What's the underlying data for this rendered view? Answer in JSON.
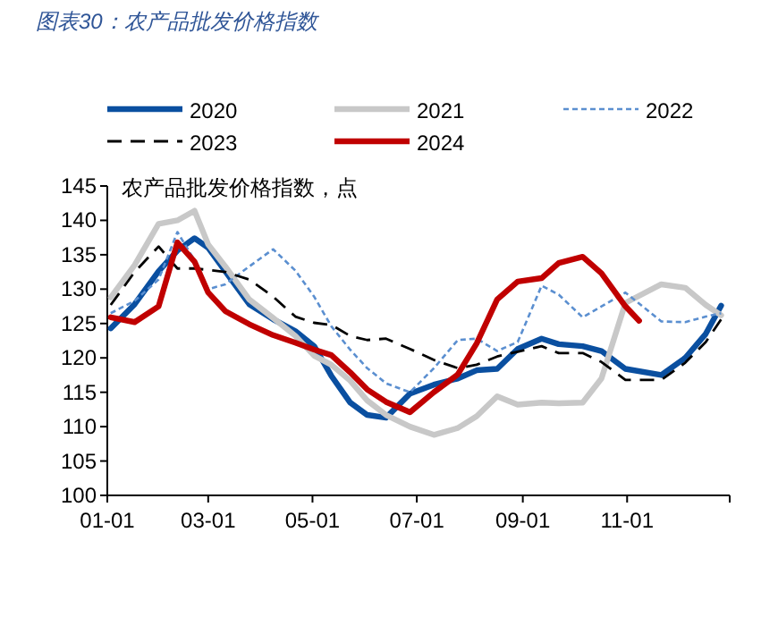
{
  "chart_data": {
    "type": "line",
    "title": "图表30：农产品批发价格指数",
    "ylabel": "农产品批发价格指数，点",
    "x": [
      "--01-03",
      "--01-17",
      "--01-31",
      "--02-11",
      "--02-21",
      "--03-01",
      "--03-11",
      "--03-25",
      "--04-08",
      "--04-21",
      "--05-02",
      "--05-12",
      "--05-23",
      "--06-02",
      "--06-13",
      "--06-27",
      "--07-11",
      "--07-25",
      "--08-05",
      "--08-17",
      "--08-29",
      "--09-12",
      "--09-22",
      "--10-06",
      "--10-17",
      "--10-31",
      "--11-21",
      "--12-05",
      "--12-17",
      "--12-26"
    ],
    "series": [
      {
        "name": "2020",
        "color": "#0a4fa0",
        "line_style": "solid",
        "values": [
          124.3,
          127.8,
          132.6,
          135.6,
          137.4,
          136,
          132.6,
          127.8,
          125.6,
          123.9,
          121.7,
          117.4,
          113.5,
          111.7,
          111.3,
          114.8,
          116.1,
          117,
          118.2,
          118.4,
          121.3,
          122.8,
          122,
          121.7,
          121,
          118.4,
          117.5,
          120,
          123.5,
          127.6
        ]
      },
      {
        "name": "2021",
        "color": "#c8c8c8",
        "line_style": "solid",
        "values": [
          128.8,
          133.5,
          139.5,
          140,
          141.4,
          136.5,
          133.3,
          128.5,
          125.8,
          123.2,
          120.3,
          119,
          116.7,
          113.8,
          111.7,
          110,
          108.8,
          109.8,
          111.5,
          114.4,
          113.2,
          113.5,
          113.4,
          113.5,
          117,
          128,
          130.7,
          130.2,
          127.7,
          126.2
        ]
      },
      {
        "name": "2022",
        "color": "#5b8fd0",
        "line_style": "dotted",
        "values": [
          126.5,
          128.3,
          131.4,
          138.3,
          134.2,
          130,
          130.7,
          133.3,
          135.8,
          132.7,
          128.9,
          124.6,
          121.2,
          118.5,
          116.3,
          115,
          118.5,
          122.6,
          122.8,
          121,
          122.3,
          130.5,
          129.2,
          125.9,
          127.5,
          129.5,
          125.3,
          125.2,
          126,
          126.5
        ]
      },
      {
        "name": "2023",
        "color": "#000000",
        "line_style": "dashed",
        "values": [
          127.7,
          132.5,
          136.2,
          133,
          133,
          132.8,
          132.5,
          131.4,
          128.9,
          126,
          125.1,
          124.8,
          123.2,
          122.6,
          122.8,
          121.3,
          119.7,
          118.5,
          119,
          120.2,
          120.9,
          121.7,
          120.7,
          120.7,
          119.4,
          116.8,
          116.8,
          119.3,
          122.3,
          125.6
        ]
      },
      {
        "name": "2024",
        "color": "#c00000",
        "line_style": "solid",
        "x": [
          "--01-03",
          "--01-17",
          "--01-31",
          "--02-11",
          "--02-21",
          "--03-01",
          "--03-11",
          "--03-25",
          "--04-08",
          "--04-21",
          "--05-02",
          "--05-12",
          "--05-23",
          "--06-02",
          "--06-13",
          "--06-27",
          "--07-11",
          "--07-25",
          "--08-05",
          "--08-17",
          "--08-29",
          "--09-12",
          "--09-22",
          "--10-06",
          "--10-17",
          "--10-31",
          "--11-08"
        ],
        "values": [
          125.9,
          125.2,
          127.5,
          136.8,
          134,
          129.5,
          126.8,
          124.9,
          123.3,
          122.2,
          121.2,
          120.4,
          117.9,
          115.4,
          113.6,
          112.1,
          115,
          117.6,
          122.1,
          128.5,
          131.1,
          131.6,
          133.8,
          134.7,
          132.3,
          127.5,
          125.4
        ]
      }
    ],
    "xlim": [
      "--01-01",
      "--12-31"
    ],
    "xticks": [
      {
        "value": "--01-01",
        "label": "01-01"
      },
      {
        "value": "--03-01",
        "label": "03-01"
      },
      {
        "value": "--05-01",
        "label": "05-01"
      },
      {
        "value": "--07-01",
        "label": "07-01"
      },
      {
        "value": "--09-01",
        "label": "09-01"
      },
      {
        "value": "--11-01",
        "label": "11-01"
      },
      {
        "value": "--12-31",
        "label": null
      }
    ],
    "ylim": [
      100,
      145
    ],
    "yticks": [
      100,
      105,
      110,
      115,
      120,
      125,
      130,
      135,
      140,
      145
    ],
    "legend": "top",
    "grid": false
  }
}
